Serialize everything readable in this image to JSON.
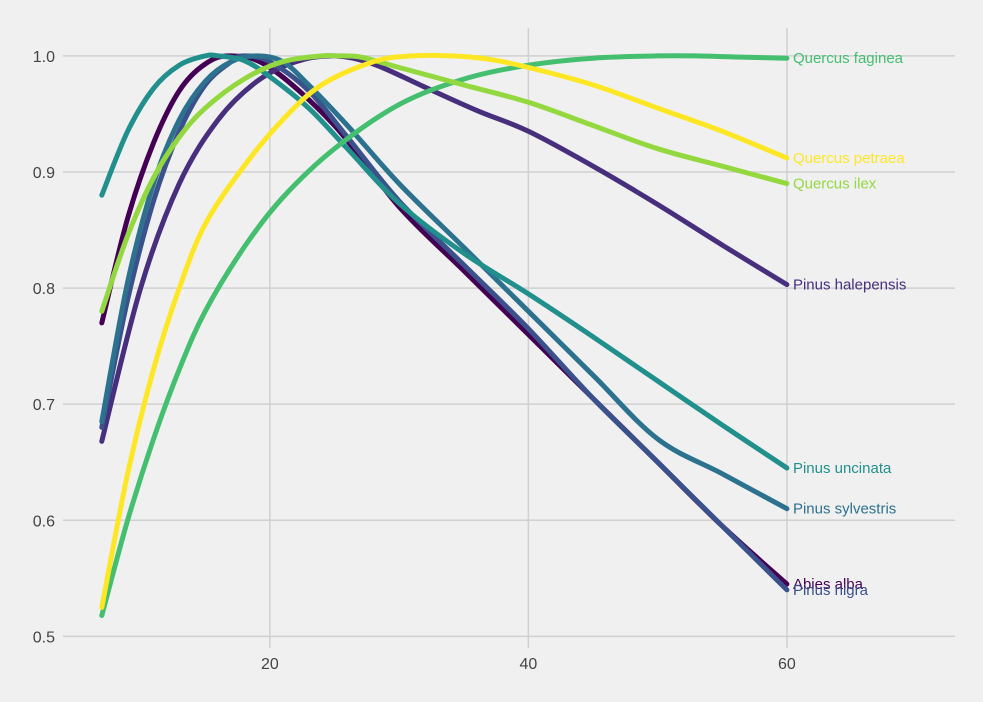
{
  "chart_data": {
    "type": "line",
    "title": "",
    "xlabel": "",
    "ylabel": "",
    "xlim": [
      4,
      73
    ],
    "ylim": [
      0.49,
      1.024
    ],
    "x_ticks": [
      20,
      40,
      60
    ],
    "y_ticks": [
      0.5,
      0.6,
      0.7,
      0.8,
      0.9,
      1.0
    ],
    "x_tick_labels": [
      "20",
      "40",
      "60"
    ],
    "y_tick_labels": [
      "0.5",
      "0.6",
      "0.7",
      "0.8",
      "0.9",
      "1.0"
    ],
    "grid": true,
    "legend": "direct labels at line ends",
    "series": [
      {
        "name": "Abies alba",
        "color": "#440154",
        "x": [
          7,
          9,
          11,
          13,
          15,
          17,
          20,
          25,
          30,
          35,
          40,
          45,
          50,
          55,
          60
        ],
        "y": [
          0.77,
          0.86,
          0.925,
          0.97,
          0.993,
          1.0,
          0.99,
          0.94,
          0.87,
          0.815,
          0.76,
          0.705,
          0.65,
          0.595,
          0.545
        ]
      },
      {
        "name": "Pinus halepensis",
        "color": "#472f7d",
        "x": [
          7,
          10,
          13,
          16,
          19,
          22,
          25,
          28,
          32,
          36,
          40,
          45,
          50,
          55,
          60
        ],
        "y": [
          0.668,
          0.8,
          0.89,
          0.945,
          0.978,
          0.995,
          1.0,
          0.993,
          0.973,
          0.953,
          0.935,
          0.905,
          0.872,
          0.837,
          0.803
        ]
      },
      {
        "name": "Pinus nigra",
        "color": "#3b518b",
        "x": [
          7,
          9,
          11,
          13,
          15,
          17,
          18,
          20,
          23,
          26,
          30,
          35,
          40,
          45,
          50,
          55,
          60
        ],
        "y": [
          0.68,
          0.79,
          0.875,
          0.935,
          0.975,
          0.995,
          1.0,
          0.995,
          0.97,
          0.93,
          0.875,
          0.82,
          0.765,
          0.705,
          0.65,
          0.595,
          0.54
        ]
      },
      {
        "name": "Pinus sylvestris",
        "color": "#2c728e",
        "x": [
          7,
          9,
          11,
          13,
          15,
          17,
          19,
          21,
          23,
          26,
          30,
          35,
          40,
          45,
          50,
          55,
          60
        ],
        "y": [
          0.685,
          0.805,
          0.89,
          0.945,
          0.978,
          0.995,
          1.0,
          0.995,
          0.975,
          0.94,
          0.89,
          0.835,
          0.78,
          0.725,
          0.67,
          0.64,
          0.61
        ]
      },
      {
        "name": "Pinus uncinata",
        "color": "#21908d",
        "x": [
          7,
          9,
          11,
          13,
          15,
          16,
          18,
          20,
          23,
          26,
          30,
          35,
          40,
          45,
          50,
          55,
          60
        ],
        "y": [
          0.88,
          0.935,
          0.972,
          0.992,
          1.0,
          1.0,
          0.996,
          0.982,
          0.955,
          0.92,
          0.873,
          0.83,
          0.795,
          0.758,
          0.72,
          0.682,
          0.645
        ]
      },
      {
        "name": "Quercus faginea",
        "color": "#44bf70",
        "x": [
          7,
          9,
          11,
          13,
          15,
          18,
          21,
          25,
          30,
          35,
          40,
          45,
          50,
          53,
          56,
          60
        ],
        "y": [
          0.518,
          0.6,
          0.67,
          0.73,
          0.78,
          0.835,
          0.878,
          0.92,
          0.958,
          0.98,
          0.992,
          0.998,
          1.0,
          1.0,
          0.999,
          0.998
        ]
      },
      {
        "name": "Quercus ilex",
        "color": "#94d840",
        "x": [
          7,
          9,
          11,
          13,
          15,
          18,
          21,
          24,
          25,
          27,
          30,
          35,
          40,
          45,
          50,
          55,
          60
        ],
        "y": [
          0.78,
          0.845,
          0.895,
          0.93,
          0.955,
          0.98,
          0.995,
          1.0,
          1.0,
          0.999,
          0.99,
          0.975,
          0.96,
          0.94,
          0.92,
          0.905,
          0.89
        ]
      },
      {
        "name": "Quercus petraea",
        "color": "#fde725",
        "x": [
          7,
          9,
          11,
          13,
          15,
          18,
          21,
          24,
          28,
          31,
          34,
          37,
          40,
          45,
          50,
          55,
          60
        ],
        "y": [
          0.525,
          0.64,
          0.73,
          0.8,
          0.855,
          0.905,
          0.945,
          0.975,
          0.995,
          1.0,
          1.0,
          0.997,
          0.99,
          0.975,
          0.955,
          0.935,
          0.912
        ]
      }
    ]
  }
}
